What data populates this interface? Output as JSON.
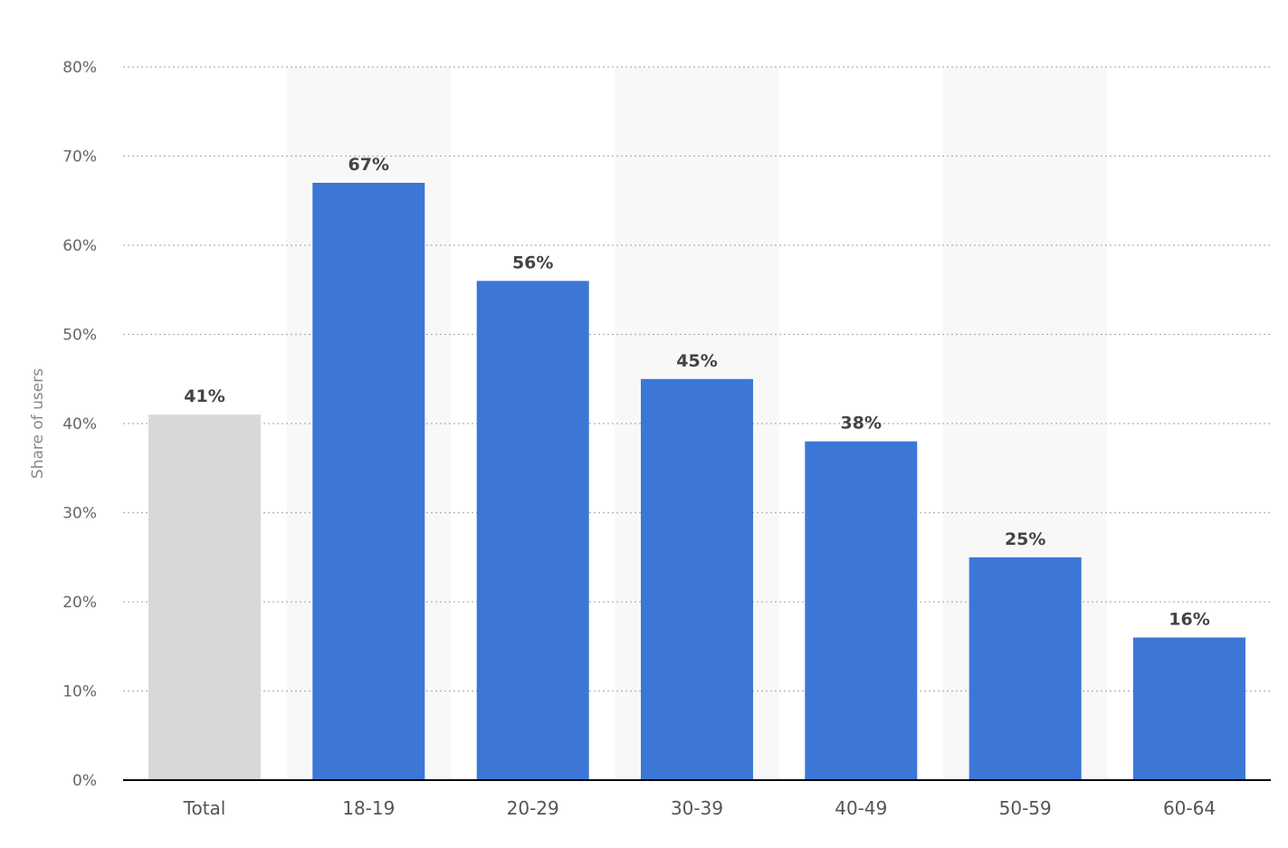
{
  "chart_data": {
    "type": "bar",
    "ylabel": "Share of users",
    "xlabel": "",
    "ylim": [
      0,
      80
    ],
    "ytick_step": 10,
    "y_unit": "%",
    "grid": true,
    "categories": [
      "Total",
      "18-19",
      "20-29",
      "30-39",
      "40-49",
      "50-59",
      "60-64"
    ],
    "values": [
      41,
      67,
      56,
      45,
      38,
      25,
      16
    ],
    "value_labels": [
      "41%",
      "67%",
      "56%",
      "45%",
      "38%",
      "25%",
      "16%"
    ],
    "colors": {
      "highlight": "#d8d8d8",
      "bar": "#3c77d6",
      "band": "#f8f8f8",
      "grid": "#b0b0b0",
      "baseline": "#000000"
    }
  }
}
